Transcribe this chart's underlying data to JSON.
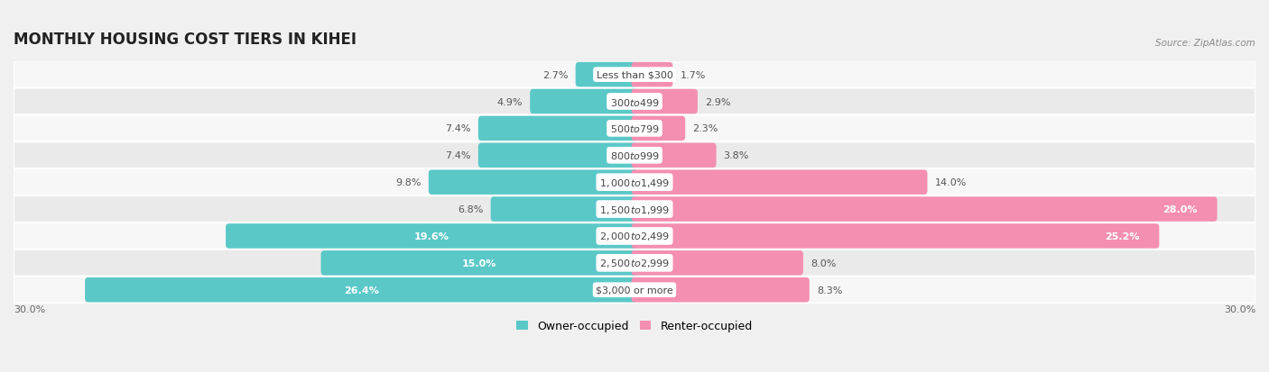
{
  "title": "MONTHLY HOUSING COST TIERS IN KIHEI",
  "source": "Source: ZipAtlas.com",
  "categories": [
    "Less than $300",
    "$300 to $499",
    "$500 to $799",
    "$800 to $999",
    "$1,000 to $1,499",
    "$1,500 to $1,999",
    "$2,000 to $2,499",
    "$2,500 to $2,999",
    "$3,000 or more"
  ],
  "owner_values": [
    2.7,
    4.9,
    7.4,
    7.4,
    9.8,
    6.8,
    19.6,
    15.0,
    26.4
  ],
  "renter_values": [
    1.7,
    2.9,
    2.3,
    3.8,
    14.0,
    28.0,
    25.2,
    8.0,
    8.3
  ],
  "owner_color": "#5bc8c8",
  "renter_color": "#f48fb1",
  "renter_color_dark": "#f06292",
  "background_color": "#f0f0f0",
  "row_bg_light": "#f7f7f7",
  "row_bg_dark": "#eaeaea",
  "axis_max": 30.0,
  "legend_owner": "Owner-occupied",
  "legend_renter": "Renter-occupied",
  "title_fontsize": 12,
  "label_fontsize": 8,
  "bar_label_fontsize": 8,
  "owner_inside_threshold": 15.0,
  "renter_inside_threshold": 20.0
}
